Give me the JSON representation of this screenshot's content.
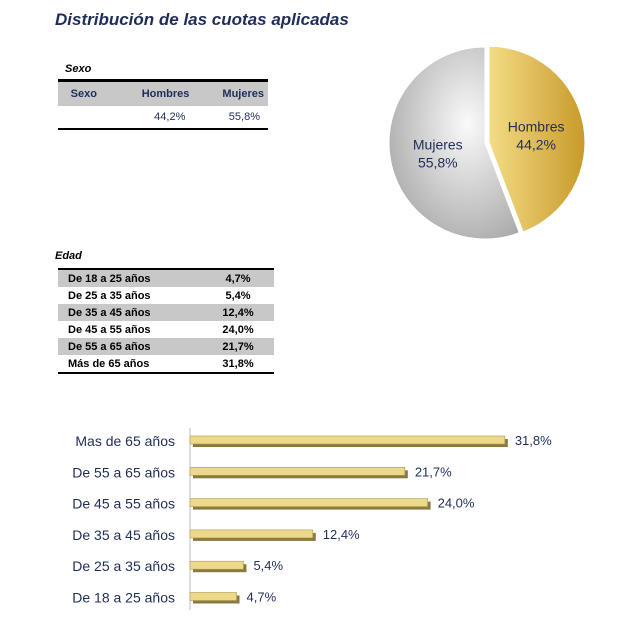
{
  "title": "Distribución de las cuotas aplicadas",
  "sexo": {
    "caption": "Sexo",
    "headers": [
      "Sexo",
      "Hombres",
      "Mujeres"
    ],
    "values": [
      "",
      "44,2%",
      "55,8%"
    ]
  },
  "edad": {
    "caption": "Edad",
    "rows": [
      {
        "label": "De 18 a 25 años",
        "value": "4,7%"
      },
      {
        "label": "De 25 a 35 años",
        "value": "5,4%"
      },
      {
        "label": "De 35 a 45 años",
        "value": "12,4%"
      },
      {
        "label": "De 45 a 55 años",
        "value": "24,0%"
      },
      {
        "label": "De 55 a 65 años",
        "value": "21,7%"
      },
      {
        "label": "Más de 65 años",
        "value": "31,8%"
      }
    ]
  },
  "chart_data": [
    {
      "type": "pie",
      "labels": [
        "Hombres",
        "Mujeres"
      ],
      "values": [
        44.2,
        55.8
      ],
      "value_labels": [
        "44,2%",
        "55,8%"
      ],
      "colors": [
        "#e2bf52",
        "#d0d0d0"
      ]
    },
    {
      "type": "bar",
      "orientation": "horizontal",
      "categories": [
        "Mas de 65 años",
        "De 55 a 65 años",
        "De 45 a 55 años",
        "De 35 a 45 años",
        "De 25 a 35 años",
        "De 18 a 25 años"
      ],
      "values": [
        31.8,
        21.7,
        24.0,
        12.4,
        5.4,
        4.7
      ],
      "value_labels": [
        "31,8%",
        "21,7%",
        "24,0%",
        "12,4%",
        "5,4%",
        "4,7%"
      ],
      "color": "#ecd98a"
    }
  ]
}
